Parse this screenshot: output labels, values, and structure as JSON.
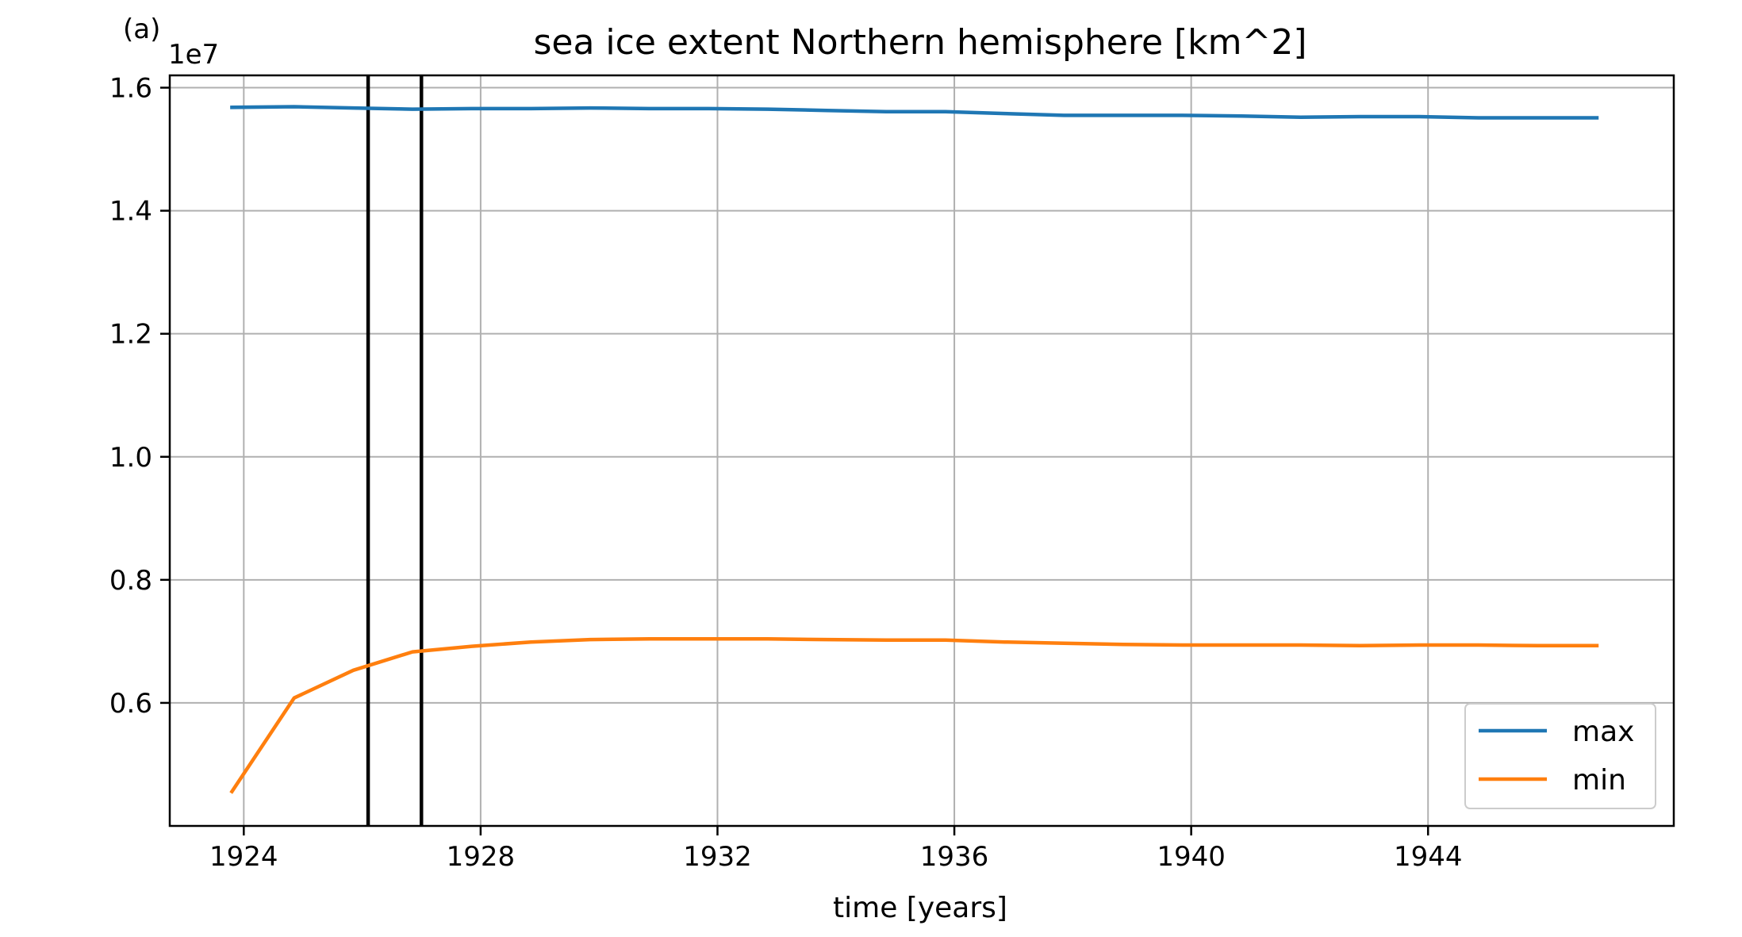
{
  "panel_label": "(a)",
  "chart_data": {
    "type": "line",
    "title": "sea ice extent Northern hemisphere [km^2]",
    "xlabel": "time [years]",
    "ylabel": "",
    "y_offset_label": "1e7",
    "xlim": [
      1922.75,
      1948.15
    ],
    "ylim": [
      0.4,
      1.62
    ],
    "xticks": [
      1924,
      1928,
      1932,
      1936,
      1940,
      1944
    ],
    "xtick_labels": [
      "1924",
      "1928",
      "1932",
      "1936",
      "1940",
      "1944"
    ],
    "yticks": [
      0.6,
      0.8,
      1.0,
      1.2,
      1.4,
      1.6
    ],
    "ytick_labels": [
      "0.6",
      "0.8",
      "1.0",
      "1.2",
      "1.4",
      "1.6"
    ],
    "grid": true,
    "legend_position": "lower-right",
    "vertical_lines": [
      1926.1,
      1927.0
    ],
    "vertical_line_color": "#000000",
    "x": [
      1923.8,
      1924.85,
      1925.85,
      1926.85,
      1927.85,
      1928.85,
      1929.85,
      1930.85,
      1931.85,
      1932.85,
      1933.85,
      1934.85,
      1935.85,
      1936.85,
      1937.85,
      1938.85,
      1939.85,
      1940.85,
      1941.85,
      1942.85,
      1943.85,
      1944.85,
      1945.85,
      1946.85
    ],
    "series": [
      {
        "name": "max",
        "color": "#1f77b4",
        "values": [
          1.568,
          1.569,
          1.567,
          1.565,
          1.566,
          1.566,
          1.567,
          1.566,
          1.566,
          1.565,
          1.563,
          1.561,
          1.561,
          1.558,
          1.555,
          1.555,
          1.555,
          1.554,
          1.552,
          1.553,
          1.553,
          1.551,
          1.551,
          1.551
        ]
      },
      {
        "name": "min",
        "color": "#ff7f0e",
        "values": [
          0.456,
          0.608,
          0.653,
          0.683,
          0.692,
          0.699,
          0.703,
          0.704,
          0.704,
          0.704,
          0.703,
          0.702,
          0.702,
          0.699,
          0.697,
          0.695,
          0.694,
          0.694,
          0.694,
          0.693,
          0.694,
          0.694,
          0.693,
          0.693
        ]
      }
    ]
  }
}
